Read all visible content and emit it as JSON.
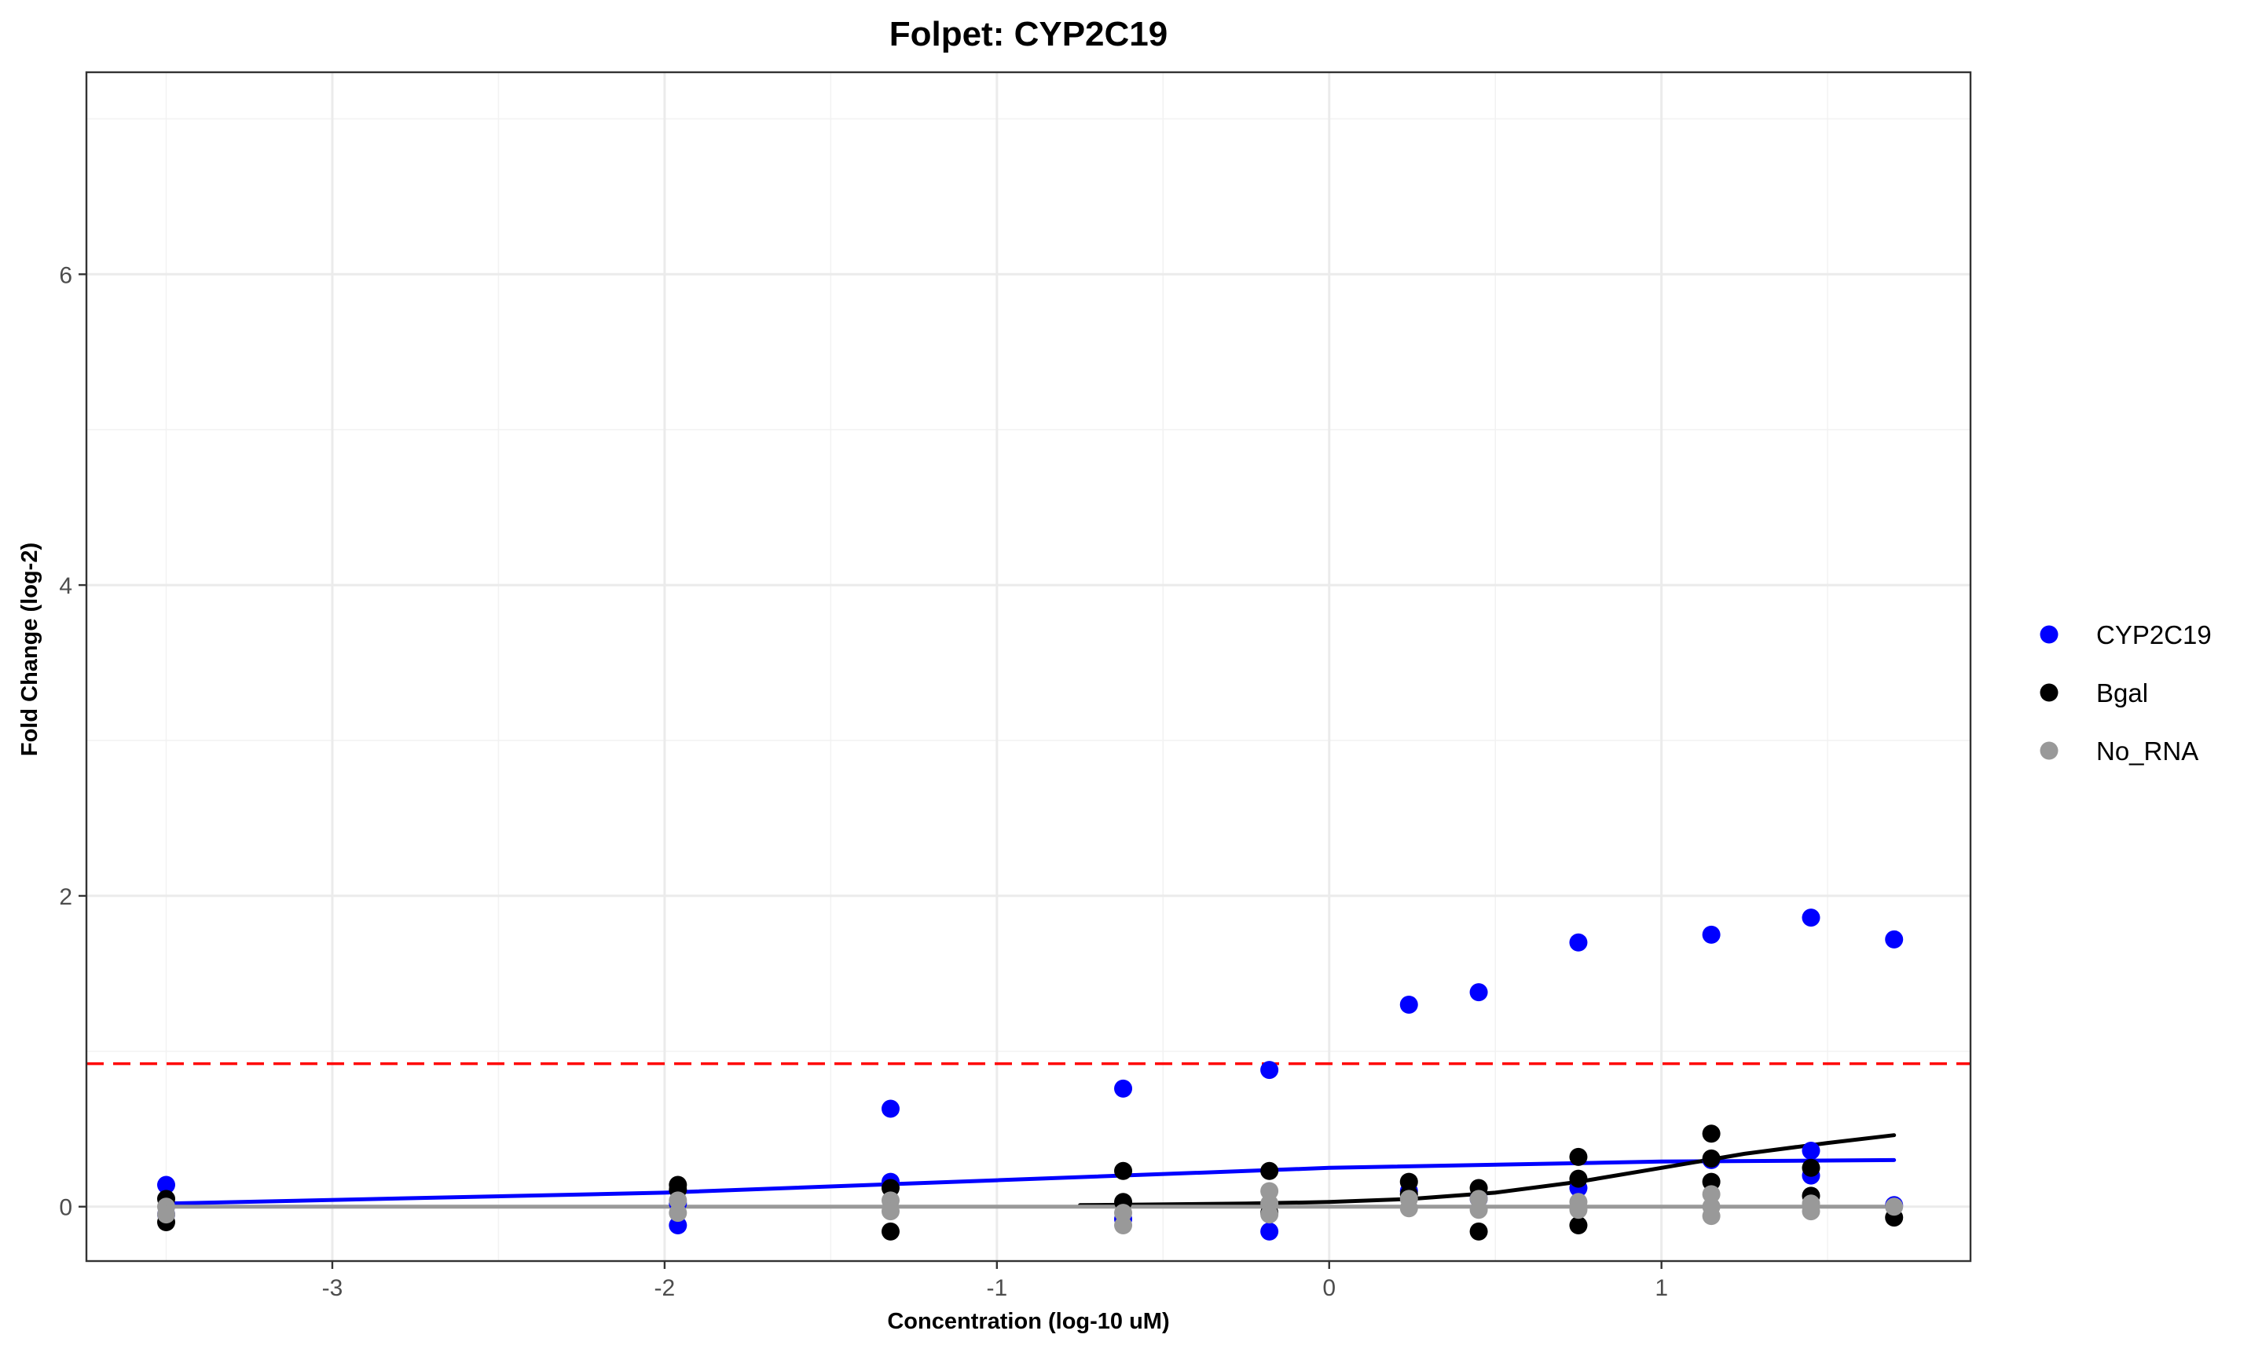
{
  "chart_data": {
    "type": "scatter",
    "title": "Folpet: CYP2C19",
    "xlabel": "Concentration (log-10 uM)",
    "ylabel": "Fold Change (log-2)",
    "xlim": [
      -3.74,
      1.93
    ],
    "ylim": [
      -0.35,
      7.3
    ],
    "x_ticks": [
      -3,
      -2,
      -1,
      0,
      1
    ],
    "x_tick_labels": [
      "-3",
      "-2",
      "-1",
      "0",
      "1"
    ],
    "x_minor_ticks": [
      -3.5,
      -2.5,
      -1.5,
      -0.5,
      0.5,
      1.5
    ],
    "y_ticks": [
      0,
      2,
      4,
      6
    ],
    "y_tick_labels": [
      "0",
      "2",
      "4",
      "6"
    ],
    "y_minor_ticks": [
      1,
      3,
      5,
      7
    ],
    "grid": true,
    "legend_position": "right",
    "threshold": {
      "y": 0.92,
      "color": "#ff0000",
      "style": "dashed"
    },
    "series": [
      {
        "name": "CYP2C19",
        "color": "#0000ff",
        "points": [
          {
            "x": -3.5,
            "y": 0.14
          },
          {
            "x": -3.5,
            "y": -0.05
          },
          {
            "x": -1.96,
            "y": -0.12
          },
          {
            "x": -1.96,
            "y": 0.02
          },
          {
            "x": -1.32,
            "y": 0.63
          },
          {
            "x": -1.32,
            "y": 0.16
          },
          {
            "x": -0.62,
            "y": 0.76
          },
          {
            "x": -0.62,
            "y": -0.08
          },
          {
            "x": -0.18,
            "y": 0.88
          },
          {
            "x": -0.18,
            "y": -0.16
          },
          {
            "x": 0.24,
            "y": 1.3
          },
          {
            "x": 0.24,
            "y": 0.1
          },
          {
            "x": 0.45,
            "y": 1.38
          },
          {
            "x": 0.45,
            "y": 0.05
          },
          {
            "x": 0.75,
            "y": 1.7
          },
          {
            "x": 0.75,
            "y": 0.12
          },
          {
            "x": 1.15,
            "y": 1.75
          },
          {
            "x": 1.15,
            "y": 0.3
          },
          {
            "x": 1.45,
            "y": 1.86
          },
          {
            "x": 1.45,
            "y": 0.36
          },
          {
            "x": 1.45,
            "y": 0.2
          },
          {
            "x": 1.7,
            "y": 1.72
          },
          {
            "x": 1.7,
            "y": 0.01
          }
        ],
        "fit_line": [
          {
            "x": -3.5,
            "y": 0.02
          },
          {
            "x": -2.0,
            "y": 0.09
          },
          {
            "x": -1.0,
            "y": 0.17
          },
          {
            "x": 0.0,
            "y": 0.25
          },
          {
            "x": 1.0,
            "y": 0.29
          },
          {
            "x": 1.7,
            "y": 0.3
          }
        ]
      },
      {
        "name": "Bgal",
        "color": "#000000",
        "points": [
          {
            "x": -3.5,
            "y": 0.05
          },
          {
            "x": -3.5,
            "y": -0.1
          },
          {
            "x": -1.96,
            "y": 0.14
          },
          {
            "x": -1.96,
            "y": 0.11
          },
          {
            "x": -1.32,
            "y": 0.12
          },
          {
            "x": -1.32,
            "y": -0.16
          },
          {
            "x": -0.62,
            "y": 0.23
          },
          {
            "x": -0.62,
            "y": 0.03
          },
          {
            "x": -0.18,
            "y": 0.23
          },
          {
            "x": -0.18,
            "y": -0.04
          },
          {
            "x": 0.24,
            "y": 0.16
          },
          {
            "x": 0.24,
            "y": 0.08
          },
          {
            "x": 0.45,
            "y": 0.12
          },
          {
            "x": 0.45,
            "y": -0.16
          },
          {
            "x": 0.75,
            "y": 0.32
          },
          {
            "x": 0.75,
            "y": 0.18
          },
          {
            "x": 0.75,
            "y": -0.12
          },
          {
            "x": 1.15,
            "y": 0.47
          },
          {
            "x": 1.15,
            "y": 0.31
          },
          {
            "x": 1.15,
            "y": 0.16
          },
          {
            "x": 1.45,
            "y": 0.25
          },
          {
            "x": 1.45,
            "y": 0.07
          },
          {
            "x": 1.7,
            "y": -0.07
          }
        ],
        "fit_line": [
          {
            "x": -0.75,
            "y": 0.01
          },
          {
            "x": -0.25,
            "y": 0.02
          },
          {
            "x": 0.0,
            "y": 0.03
          },
          {
            "x": 0.25,
            "y": 0.05
          },
          {
            "x": 0.5,
            "y": 0.09
          },
          {
            "x": 0.75,
            "y": 0.16
          },
          {
            "x": 1.0,
            "y": 0.25
          },
          {
            "x": 1.25,
            "y": 0.34
          },
          {
            "x": 1.5,
            "y": 0.41
          },
          {
            "x": 1.7,
            "y": 0.46
          }
        ]
      },
      {
        "name": "No_RNA",
        "color": "#999999",
        "points": [
          {
            "x": -3.5,
            "y": 0.0
          },
          {
            "x": -3.5,
            "y": -0.05
          },
          {
            "x": -1.96,
            "y": 0.04
          },
          {
            "x": -1.96,
            "y": -0.04
          },
          {
            "x": -1.32,
            "y": 0.04
          },
          {
            "x": -1.32,
            "y": -0.03
          },
          {
            "x": -0.62,
            "y": -0.04
          },
          {
            "x": -0.62,
            "y": -0.12
          },
          {
            "x": -0.18,
            "y": 0.1
          },
          {
            "x": -0.18,
            "y": 0.02
          },
          {
            "x": -0.18,
            "y": -0.05
          },
          {
            "x": 0.24,
            "y": 0.05
          },
          {
            "x": 0.24,
            "y": -0.01
          },
          {
            "x": 0.45,
            "y": 0.05
          },
          {
            "x": 0.45,
            "y": -0.02
          },
          {
            "x": 0.75,
            "y": 0.03
          },
          {
            "x": 0.75,
            "y": -0.02
          },
          {
            "x": 1.15,
            "y": 0.08
          },
          {
            "x": 1.15,
            "y": 0.0
          },
          {
            "x": 1.15,
            "y": -0.06
          },
          {
            "x": 1.45,
            "y": 0.02
          },
          {
            "x": 1.45,
            "y": -0.03
          },
          {
            "x": 1.7,
            "y": 0.0
          }
        ],
        "fit_line": [
          {
            "x": -3.5,
            "y": 0.0
          },
          {
            "x": 1.7,
            "y": 0.0
          }
        ]
      }
    ]
  }
}
